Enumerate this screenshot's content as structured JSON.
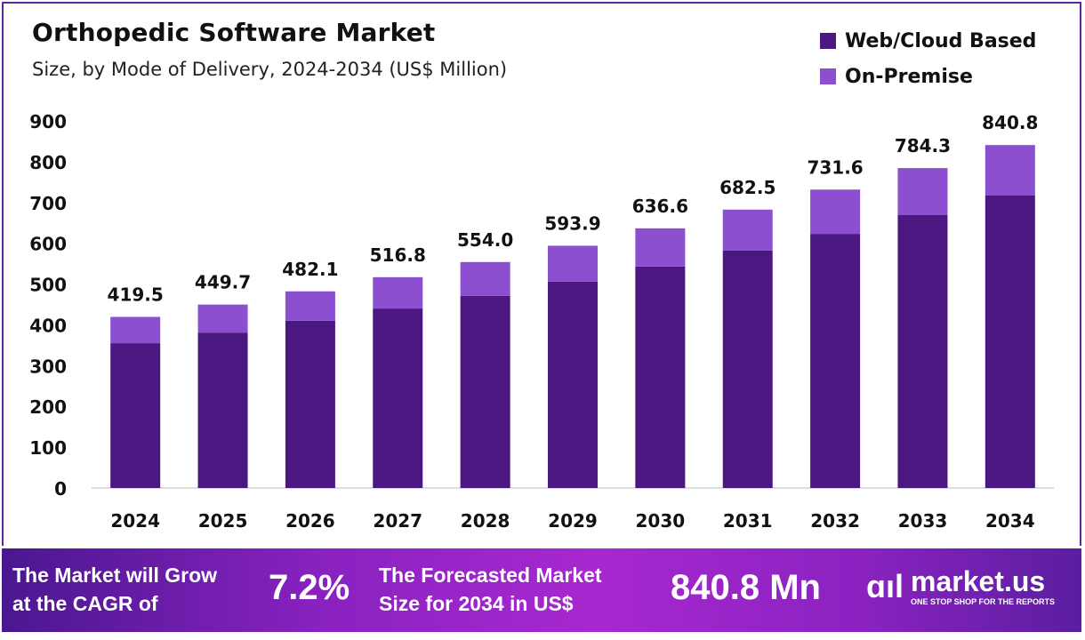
{
  "chart_data": {
    "type": "bar",
    "stacked": true,
    "title": "Orthopedic Software Market",
    "subtitle": "Size, by Mode of Delivery, 2024-2034 (US$ Million)",
    "categories": [
      "2024",
      "2025",
      "2026",
      "2027",
      "2028",
      "2029",
      "2030",
      "2031",
      "2032",
      "2033",
      "2034"
    ],
    "series": [
      {
        "name": "Web/Cloud Based",
        "color": "#4b1780",
        "values": [
          355,
          381,
          410,
          440,
          471,
          506,
          543,
          582,
          623,
          669,
          717
        ]
      },
      {
        "name": "On-Premise",
        "color": "#8b4fd0",
        "values": [
          64.5,
          68.7,
          72.1,
          76.8,
          83.0,
          87.9,
          93.6,
          100.5,
          108.6,
          115.3,
          123.8
        ]
      }
    ],
    "totals": [
      "419.5",
      "449.7",
      "482.1",
      "516.8",
      "554.0",
      "593.9",
      "636.6",
      "682.5",
      "731.6",
      "784.3",
      "840.8"
    ],
    "ylim": [
      0,
      900
    ],
    "yticks": [
      "0",
      "100",
      "200",
      "300",
      "400",
      "500",
      "600",
      "700",
      "800",
      "900"
    ],
    "grid": false,
    "legend": "top-right"
  },
  "footer": {
    "cagr_text_line1": "The Market will Grow",
    "cagr_text_line2": "at the CAGR of",
    "cagr_value": "7.2%",
    "forecast_text_line1": "The Forecasted Market",
    "forecast_text_line2": "Size for 2034 in US$",
    "forecast_value": "840.8 Mn",
    "brand": "market.us",
    "brand_tagline": "ONE STOP SHOP FOR THE REPORTS"
  }
}
